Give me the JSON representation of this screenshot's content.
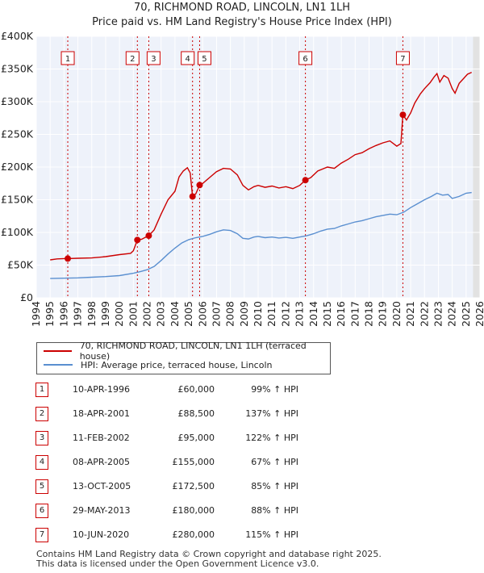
{
  "chart_data": {
    "type": "line",
    "title": "70, RICHMOND ROAD, LINCOLN, LN1 1LH",
    "subtitle": "Price paid vs. HM Land Registry's House Price Index (HPI)",
    "x_range": [
      1994,
      2026
    ],
    "y_range": [
      0,
      400000
    ],
    "y_ticks": [
      {
        "value": 0,
        "label": "£0"
      },
      {
        "value": 50000,
        "label": "£50K"
      },
      {
        "value": 100000,
        "label": "£100K"
      },
      {
        "value": 150000,
        "label": "£150K"
      },
      {
        "value": 200000,
        "label": "£200K"
      },
      {
        "value": 250000,
        "label": "£250K"
      },
      {
        "value": 300000,
        "label": "£300K"
      },
      {
        "value": 350000,
        "label": "£350K"
      },
      {
        "value": 400000,
        "label": "£400K"
      }
    ],
    "x_ticks": [
      "1994",
      "1995",
      "1996",
      "1997",
      "1998",
      "1999",
      "2000",
      "2001",
      "2002",
      "2003",
      "2004",
      "2005",
      "2006",
      "2007",
      "2008",
      "2009",
      "2010",
      "2011",
      "2012",
      "2013",
      "2014",
      "2015",
      "2016",
      "2017",
      "2018",
      "2019",
      "2020",
      "2021",
      "2022",
      "2023",
      "2024",
      "2025",
      "2026"
    ],
    "data_end_year": 2025.5,
    "grid": true,
    "series": [
      {
        "name": "70, RICHMOND ROAD, LINCOLN, LN1 1LH (terraced house)",
        "color": "#cc0000",
        "points": [
          [
            1995.0,
            58000
          ],
          [
            1995.5,
            59500
          ],
          [
            1996.0,
            60000
          ],
          [
            1996.27,
            60000
          ],
          [
            1997.0,
            60500
          ],
          [
            1998.0,
            61000
          ],
          [
            1999.0,
            63000
          ],
          [
            2000.0,
            66000
          ],
          [
            2000.8,
            68000
          ],
          [
            2001.0,
            72000
          ],
          [
            2001.29,
            88500
          ],
          [
            2001.6,
            89500
          ],
          [
            2001.9,
            93000
          ],
          [
            2002.11,
            95000
          ],
          [
            2002.5,
            104000
          ],
          [
            2003.0,
            128000
          ],
          [
            2003.5,
            150000
          ],
          [
            2004.0,
            163000
          ],
          [
            2004.3,
            185000
          ],
          [
            2004.6,
            194000
          ],
          [
            2004.9,
            199000
          ],
          [
            2005.1,
            191000
          ],
          [
            2005.27,
            155000
          ],
          [
            2005.5,
            159000
          ],
          [
            2005.78,
            172500
          ],
          [
            2006.0,
            175000
          ],
          [
            2006.5,
            184000
          ],
          [
            2007.0,
            193000
          ],
          [
            2007.5,
            198000
          ],
          [
            2008.0,
            197000
          ],
          [
            2008.5,
            188000
          ],
          [
            2008.9,
            172000
          ],
          [
            2009.3,
            165000
          ],
          [
            2009.7,
            170000
          ],
          [
            2010.0,
            172000
          ],
          [
            2010.5,
            169000
          ],
          [
            2011.0,
            171000
          ],
          [
            2011.5,
            168000
          ],
          [
            2012.0,
            170000
          ],
          [
            2012.5,
            167000
          ],
          [
            2013.0,
            172000
          ],
          [
            2013.41,
            180000
          ],
          [
            2013.8,
            184000
          ],
          [
            2014.3,
            194000
          ],
          [
            2015.0,
            200000
          ],
          [
            2015.5,
            198000
          ],
          [
            2016.0,
            206000
          ],
          [
            2016.5,
            212000
          ],
          [
            2017.0,
            219000
          ],
          [
            2017.5,
            222000
          ],
          [
            2018.0,
            228000
          ],
          [
            2018.5,
            233000
          ],
          [
            2019.0,
            237000
          ],
          [
            2019.5,
            240000
          ],
          [
            2020.0,
            232000
          ],
          [
            2020.3,
            236000
          ],
          [
            2020.44,
            280000
          ],
          [
            2020.7,
            272000
          ],
          [
            2021.0,
            283000
          ],
          [
            2021.3,
            298000
          ],
          [
            2021.7,
            312000
          ],
          [
            2022.0,
            320000
          ],
          [
            2022.4,
            329000
          ],
          [
            2022.7,
            338000
          ],
          [
            2022.9,
            343000
          ],
          [
            2023.1,
            330000
          ],
          [
            2023.4,
            340000
          ],
          [
            2023.7,
            336000
          ],
          [
            2024.0,
            320000
          ],
          [
            2024.2,
            313000
          ],
          [
            2024.5,
            328000
          ],
          [
            2024.8,
            335000
          ],
          [
            2025.1,
            342000
          ],
          [
            2025.4,
            345000
          ]
        ]
      },
      {
        "name": "HPI: Average price, terraced house, Lincoln",
        "color": "#5a8fd0",
        "points": [
          [
            1995.0,
            29500
          ],
          [
            1996.0,
            30000
          ],
          [
            1997.0,
            30500
          ],
          [
            1998.0,
            31500
          ],
          [
            1999.0,
            32500
          ],
          [
            2000.0,
            34000
          ],
          [
            2001.0,
            37500
          ],
          [
            2001.5,
            40000
          ],
          [
            2002.0,
            43000
          ],
          [
            2002.5,
            48000
          ],
          [
            2003.0,
            57000
          ],
          [
            2003.5,
            67000
          ],
          [
            2004.0,
            76000
          ],
          [
            2004.5,
            84000
          ],
          [
            2005.0,
            89000
          ],
          [
            2005.5,
            92000
          ],
          [
            2006.0,
            94000
          ],
          [
            2006.5,
            97000
          ],
          [
            2007.0,
            101000
          ],
          [
            2007.5,
            104000
          ],
          [
            2008.0,
            103000
          ],
          [
            2008.5,
            98000
          ],
          [
            2008.9,
            91000
          ],
          [
            2009.3,
            90000
          ],
          [
            2009.7,
            93000
          ],
          [
            2010.0,
            94000
          ],
          [
            2010.5,
            92000
          ],
          [
            2011.0,
            93000
          ],
          [
            2011.5,
            91500
          ],
          [
            2012.0,
            92500
          ],
          [
            2012.5,
            91000
          ],
          [
            2013.0,
            93000
          ],
          [
            2013.5,
            95000
          ],
          [
            2014.0,
            98000
          ],
          [
            2014.5,
            102000
          ],
          [
            2015.0,
            105000
          ],
          [
            2015.5,
            106000
          ],
          [
            2016.0,
            110000
          ],
          [
            2016.5,
            113000
          ],
          [
            2017.0,
            116000
          ],
          [
            2017.5,
            118000
          ],
          [
            2018.0,
            121000
          ],
          [
            2018.5,
            124000
          ],
          [
            2019.0,
            126000
          ],
          [
            2019.5,
            128000
          ],
          [
            2020.0,
            127000
          ],
          [
            2020.5,
            131000
          ],
          [
            2021.0,
            138000
          ],
          [
            2021.5,
            144000
          ],
          [
            2022.0,
            150000
          ],
          [
            2022.5,
            155000
          ],
          [
            2022.9,
            160000
          ],
          [
            2023.3,
            157000
          ],
          [
            2023.7,
            158000
          ],
          [
            2024.0,
            152000
          ],
          [
            2024.5,
            155000
          ],
          [
            2025.0,
            160000
          ],
          [
            2025.4,
            161000
          ]
        ]
      }
    ],
    "sales": [
      {
        "num": "1",
        "date": "10-APR-1996",
        "price": "£60,000",
        "hpi": "99% ↑ HPI",
        "year": 1996.27,
        "value": 60000
      },
      {
        "num": "2",
        "date": "18-APR-2001",
        "price": "£88,500",
        "hpi": "137% ↑ HPI",
        "year": 2001.29,
        "value": 88500
      },
      {
        "num": "3",
        "date": "11-FEB-2002",
        "price": "£95,000",
        "hpi": "122% ↑ HPI",
        "year": 2002.11,
        "value": 95000
      },
      {
        "num": "4",
        "date": "08-APR-2005",
        "price": "£155,000",
        "hpi": "67% ↑ HPI",
        "year": 2005.27,
        "value": 155000
      },
      {
        "num": "5",
        "date": "13-OCT-2005",
        "price": "£172,500",
        "hpi": "85% ↑ HPI",
        "year": 2005.78,
        "value": 172500
      },
      {
        "num": "6",
        "date": "29-MAY-2013",
        "price": "£180,000",
        "hpi": "88% ↑ HPI",
        "year": 2013.41,
        "value": 180000
      },
      {
        "num": "7",
        "date": "10-JUN-2020",
        "price": "£280,000",
        "hpi": "115% ↑ HPI",
        "year": 2020.44,
        "value": 280000
      }
    ]
  },
  "legend": {
    "property_label": "70, RICHMOND ROAD, LINCOLN, LN1 1LH (terraced house)",
    "hpi_label": "HPI: Average price, terraced house, Lincoln"
  },
  "footer": {
    "line1": "Contains HM Land Registry data © Crown copyright and database right 2025.",
    "line2": "This data is licensed under the Open Government Licence v3.0."
  },
  "colors": {
    "property": "#cc0000",
    "hpi": "#5a8fd0",
    "badge_border": "#cc0000",
    "plot_bg": "#eef2fa"
  }
}
